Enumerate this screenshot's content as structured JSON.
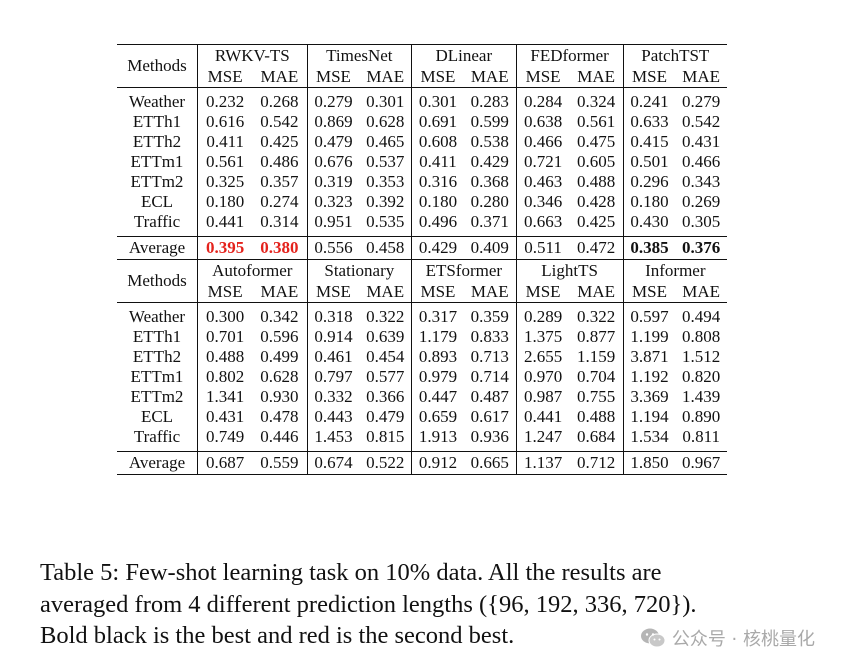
{
  "tables": [
    {
      "methods_label": "Methods",
      "models": [
        "RWKV-TS",
        "TimesNet",
        "DLinear",
        "FEDformer",
        "PatchTST"
      ],
      "metrics": [
        "MSE",
        "MAE"
      ],
      "rows": [
        {
          "name": "Weather",
          "values": [
            "0.232",
            "0.268",
            "0.279",
            "0.301",
            "0.301",
            "0.283",
            "0.284",
            "0.324",
            "0.241",
            "0.279"
          ]
        },
        {
          "name": "ETTh1",
          "values": [
            "0.616",
            "0.542",
            "0.869",
            "0.628",
            "0.691",
            "0.599",
            "0.638",
            "0.561",
            "0.633",
            "0.542"
          ]
        },
        {
          "name": "ETTh2",
          "values": [
            "0.411",
            "0.425",
            "0.479",
            "0.465",
            "0.608",
            "0.538",
            "0.466",
            "0.475",
            "0.415",
            "0.431"
          ]
        },
        {
          "name": "ETTm1",
          "values": [
            "0.561",
            "0.486",
            "0.676",
            "0.537",
            "0.411",
            "0.429",
            "0.721",
            "0.605",
            "0.501",
            "0.466"
          ]
        },
        {
          "name": "ETTm2",
          "values": [
            "0.325",
            "0.357",
            "0.319",
            "0.353",
            "0.316",
            "0.368",
            "0.463",
            "0.488",
            "0.296",
            "0.343"
          ]
        },
        {
          "name": "ECL",
          "values": [
            "0.180",
            "0.274",
            "0.323",
            "0.392",
            "0.180",
            "0.280",
            "0.346",
            "0.428",
            "0.180",
            "0.269"
          ]
        },
        {
          "name": "Traffic",
          "values": [
            "0.441",
            "0.314",
            "0.951",
            "0.535",
            "0.496",
            "0.371",
            "0.663",
            "0.425",
            "0.430",
            "0.305"
          ]
        }
      ],
      "average": {
        "name": "Average",
        "values": [
          "0.395",
          "0.380",
          "0.556",
          "0.458",
          "0.429",
          "0.409",
          "0.511",
          "0.472",
          "0.385",
          "0.376"
        ]
      }
    },
    {
      "methods_label": "Methods",
      "models": [
        "Autoformer",
        "Stationary",
        "ETSformer",
        "LightTS",
        "Informer"
      ],
      "metrics": [
        "MSE",
        "MAE"
      ],
      "rows": [
        {
          "name": "Weather",
          "values": [
            "0.300",
            "0.342",
            "0.318",
            "0.322",
            "0.317",
            "0.359",
            "0.289",
            "0.322",
            "0.597",
            "0.494"
          ]
        },
        {
          "name": "ETTh1",
          "values": [
            "0.701",
            "0.596",
            "0.914",
            "0.639",
            "1.179",
            "0.833",
            "1.375",
            "0.877",
            "1.199",
            "0.808"
          ]
        },
        {
          "name": "ETTh2",
          "values": [
            "0.488",
            "0.499",
            "0.461",
            "0.454",
            "0.893",
            "0.713",
            "2.655",
            "1.159",
            "3.871",
            "1.512"
          ]
        },
        {
          "name": "ETTm1",
          "values": [
            "0.802",
            "0.628",
            "0.797",
            "0.577",
            "0.979",
            "0.714",
            "0.970",
            "0.704",
            "1.192",
            "0.820"
          ]
        },
        {
          "name": "ETTm2",
          "values": [
            "1.341",
            "0.930",
            "0.332",
            "0.366",
            "0.447",
            "0.487",
            "0.987",
            "0.755",
            "3.369",
            "1.439"
          ]
        },
        {
          "name": "ECL",
          "values": [
            "0.431",
            "0.478",
            "0.443",
            "0.479",
            "0.659",
            "0.617",
            "0.441",
            "0.488",
            "1.194",
            "0.890"
          ]
        },
        {
          "name": "Traffic",
          "values": [
            "0.749",
            "0.446",
            "1.453",
            "0.815",
            "1.913",
            "0.936",
            "1.247",
            "0.684",
            "1.534",
            "0.811"
          ]
        }
      ],
      "average": {
        "name": "Average",
        "values": [
          "0.687",
          "0.559",
          "0.674",
          "0.522",
          "0.912",
          "0.665",
          "1.137",
          "0.712",
          "1.850",
          "0.967"
        ]
      }
    }
  ],
  "highlight": {
    "red_color": "#e4221c"
  },
  "caption": {
    "line1": "Table 5: Few-shot learning task on 10% data. All the results are",
    "line2": "averaged from 4 different prediction lengths ({96, 192, 336, 720}).",
    "line3": "Bold black is the best and red is the second best."
  },
  "watermark": {
    "text": "公众号 · 核桃量化",
    "icon": "wechat-icon"
  }
}
